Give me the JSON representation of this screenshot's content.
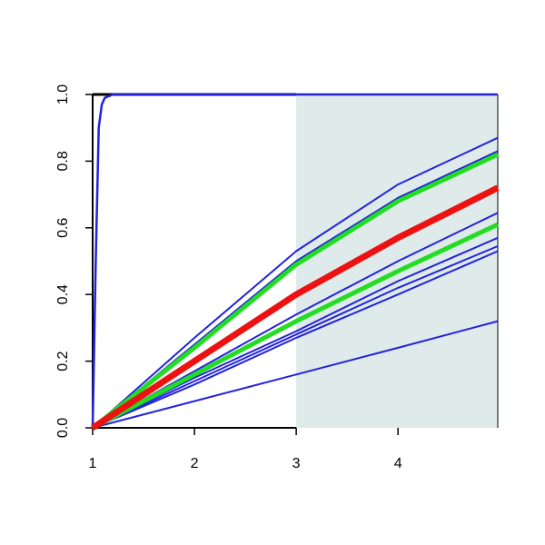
{
  "chart_data": {
    "type": "line",
    "xlim": [
      1,
      4.98
    ],
    "ylim": [
      0,
      1
    ],
    "xticks": [
      1,
      2,
      3,
      4
    ],
    "yticks": [
      {
        "value": 0,
        "label": "0.0"
      },
      0.2,
      0.4,
      0.6,
      0.8,
      {
        "value": 1,
        "label": "1.0"
      }
    ],
    "shade_from": 3,
    "shade_color": "#dfeaea",
    "series": [
      {
        "color": "#2222dd",
        "width": 2,
        "x": [
          1,
          2,
          3,
          4,
          4.98
        ],
        "values": [
          0,
          0.08,
          0.16,
          0.24,
          0.32
        ]
      },
      {
        "color": "#2222dd",
        "width": 2,
        "x": [
          1,
          2,
          3,
          4,
          4.98
        ],
        "values": [
          0,
          0.13,
          0.27,
          0.4,
          0.53
        ]
      },
      {
        "color": "#2222dd",
        "width": 2,
        "x": [
          1,
          2,
          3,
          4,
          4.98
        ],
        "values": [
          0,
          0.14,
          0.28,
          0.42,
          0.545
        ]
      },
      {
        "color": "#2222dd",
        "width": 2,
        "x": [
          1,
          2,
          3,
          4,
          4.98
        ],
        "values": [
          0,
          0.15,
          0.29,
          0.44,
          0.57
        ]
      },
      {
        "color": "#2222dd",
        "width": 2,
        "x": [
          1,
          2,
          3,
          4,
          4.98
        ],
        "values": [
          0,
          0.17,
          0.34,
          0.5,
          0.645
        ]
      },
      {
        "color": "#2222dd",
        "width": 2,
        "x": [
          1,
          2,
          3,
          4,
          4.98
        ],
        "values": [
          0,
          0.25,
          0.5,
          0.69,
          0.83
        ]
      },
      {
        "color": "#2222dd",
        "width": 2,
        "x": [
          1,
          2,
          3,
          4,
          4.98
        ],
        "values": [
          0,
          0.27,
          0.53,
          0.73,
          0.87
        ]
      },
      {
        "color": "#2222dd",
        "width": 2.5,
        "x": [
          1,
          1.03,
          1.06,
          1.09,
          1.12,
          1.2,
          4.98
        ],
        "values": [
          0,
          0.5,
          0.9,
          0.97,
          0.99,
          1,
          1
        ]
      },
      {
        "color": "#22dd22",
        "width": 5,
        "x": [
          1,
          2,
          3,
          4,
          4.98
        ],
        "values": [
          0,
          0.16,
          0.32,
          0.47,
          0.61
        ]
      },
      {
        "color": "#22dd22",
        "width": 5,
        "x": [
          1,
          2,
          3,
          4,
          4.98
        ],
        "values": [
          0,
          0.24,
          0.49,
          0.68,
          0.82
        ]
      },
      {
        "color": "#ee1111",
        "width": 7,
        "x": [
          1,
          2,
          3,
          4,
          4.98
        ],
        "values": [
          0,
          0.2,
          0.4,
          0.57,
          0.72
        ]
      }
    ]
  }
}
